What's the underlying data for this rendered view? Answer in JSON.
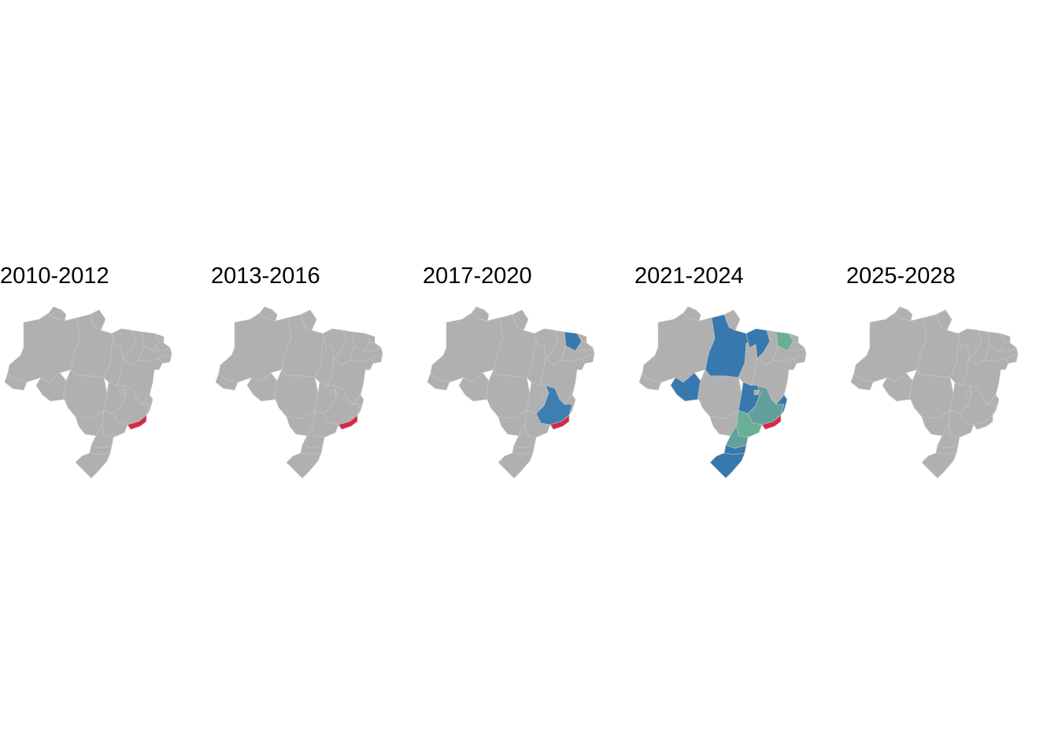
{
  "colors": {
    "background": "#ffffff",
    "state_default": "#b0b0b0",
    "state_border": "#c8c8c8",
    "red": "#d42a46",
    "blue": "#3779ae",
    "steel_blue": "#3d7fb0",
    "green": "#6aaf94",
    "teal": "#62a09c"
  },
  "panels": [
    {
      "period": "2010-2012",
      "highlights": [
        {
          "state": "RJ",
          "color_key": "red"
        }
      ]
    },
    {
      "period": "2013-2016",
      "highlights": [
        {
          "state": "RJ",
          "color_key": "red"
        }
      ]
    },
    {
      "period": "2017-2020",
      "highlights": [
        {
          "state": "RJ",
          "color_key": "red"
        },
        {
          "state": "MG",
          "color_key": "steel_blue"
        },
        {
          "state": "CE",
          "color_key": "blue"
        }
      ]
    },
    {
      "period": "2021-2024",
      "highlights": [
        {
          "state": "RJ",
          "color_key": "red"
        },
        {
          "state": "PA",
          "color_key": "blue"
        },
        {
          "state": "MA",
          "color_key": "blue"
        },
        {
          "state": "CE",
          "color_key": "green"
        },
        {
          "state": "RO",
          "color_key": "blue"
        },
        {
          "state": "GO",
          "color_key": "blue"
        },
        {
          "state": "MG",
          "color_key": "teal"
        },
        {
          "state": "SP",
          "color_key": "green"
        },
        {
          "state": "PR",
          "color_key": "teal"
        },
        {
          "state": "SC",
          "color_key": "blue"
        },
        {
          "state": "RS",
          "color_key": "blue"
        },
        {
          "state": "ES",
          "color_key": "blue"
        }
      ]
    },
    {
      "period": "2025-2028",
      "highlights": []
    }
  ]
}
